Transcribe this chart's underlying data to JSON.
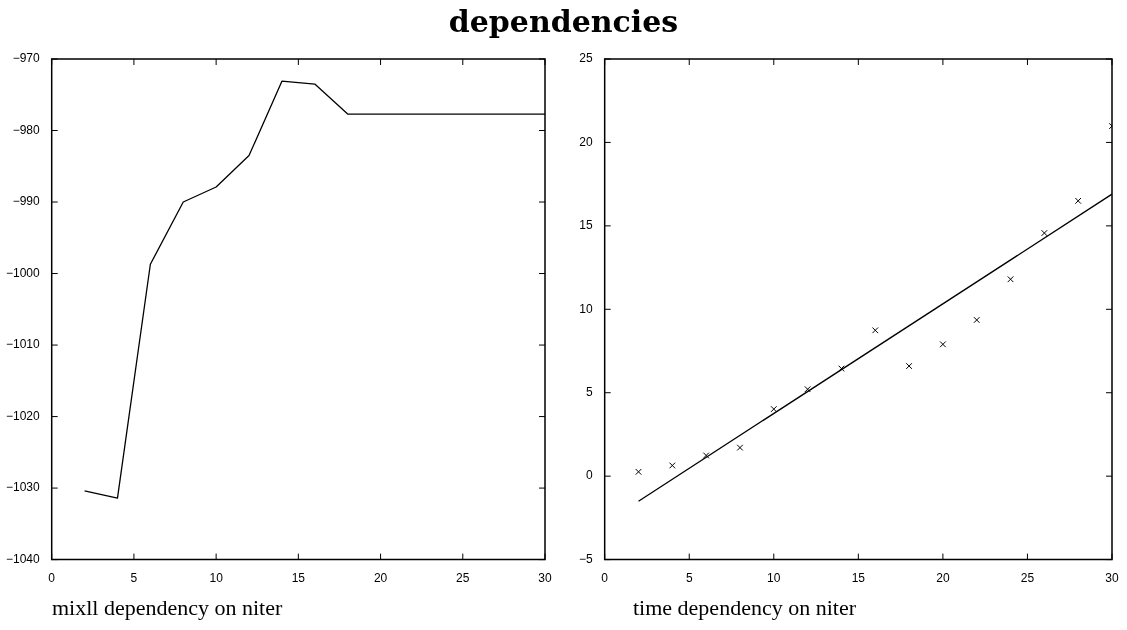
{
  "chart_data": [
    {
      "type": "line",
      "title": "dependencies",
      "xlabel": "mixll dependency on niter",
      "color": "#000000",
      "x": [
        2,
        4,
        6,
        8,
        10,
        12,
        14,
        16,
        18,
        20,
        22,
        24,
        26,
        28,
        30
      ],
      "values": [
        -1030.4,
        -1031.4,
        -998.7,
        -990.0,
        -987.9,
        -983.5,
        -973.1,
        -973.5,
        -977.7,
        -977.7,
        -977.7,
        -977.7,
        -977.7,
        -977.7,
        -977.7
      ],
      "xlim": [
        0,
        30
      ],
      "xticks": [
        0,
        5,
        10,
        15,
        20,
        25,
        30
      ],
      "ylim": [
        -1040,
        -970
      ],
      "yticks": [
        -1040,
        -1030,
        -1020,
        -1010,
        -1000,
        -990,
        -980,
        -970
      ],
      "line_style": "solid"
    },
    {
      "type": "scatter",
      "xlabel": "time dependency on niter",
      "series": [
        {
          "marker": "cross",
          "color": "#000000",
          "x": [
            2,
            4,
            6,
            8,
            10,
            12,
            14,
            16,
            18,
            20,
            22,
            24,
            26,
            28,
            30
          ],
          "values": [
            0.26,
            0.64,
            1.24,
            1.71,
            4.02,
            5.21,
            6.45,
            8.74,
            6.6,
            7.9,
            9.36,
            11.8,
            14.57,
            16.5,
            20.98
          ]
        },
        {
          "type": "line",
          "color": "#000000",
          "x": [
            2,
            30
          ],
          "values": [
            -1.5,
            16.9
          ]
        }
      ],
      "xlim": [
        0,
        30
      ],
      "xticks": [
        0,
        5,
        10,
        15,
        20,
        25,
        30
      ],
      "ylim": [
        -5,
        25
      ],
      "yticks": [
        -5,
        0,
        5,
        10,
        15,
        20,
        25
      ],
      "line_style": "solid"
    }
  ]
}
